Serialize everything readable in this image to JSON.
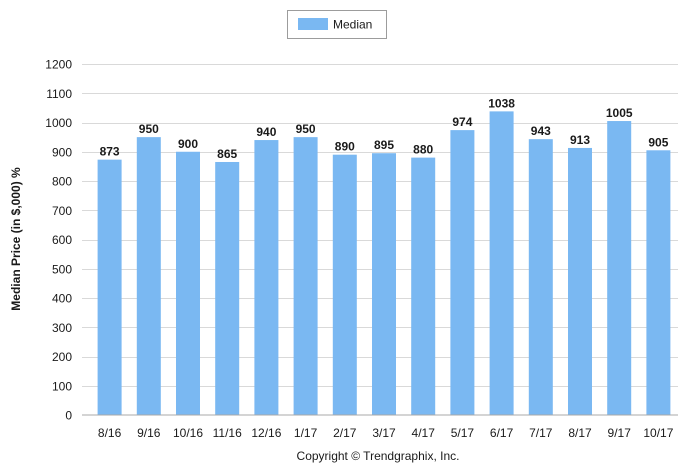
{
  "chart_data": {
    "type": "bar",
    "categories": [
      "8/16",
      "9/16",
      "10/16",
      "11/16",
      "12/16",
      "1/17",
      "2/17",
      "3/17",
      "4/17",
      "5/17",
      "6/17",
      "7/17",
      "8/17",
      "9/17",
      "10/17"
    ],
    "series": [
      {
        "name": "Median",
        "values": [
          873,
          950,
          900,
          865,
          940,
          950,
          890,
          895,
          880,
          974,
          1038,
          943,
          913,
          1005,
          905
        ],
        "color": "#7ab8f2"
      }
    ],
    "data_labels": [
      "873",
      "950",
      "900",
      "865",
      "940",
      "950",
      "890",
      "895",
      "880",
      "974",
      "1038",
      "943",
      "913",
      "1005",
      "905"
    ],
    "ylabel": "Median Price (in $,000) %",
    "xlabel": "",
    "ylim": [
      0,
      1200
    ],
    "yticks": [
      0,
      100,
      200,
      300,
      400,
      500,
      600,
      700,
      800,
      900,
      1000,
      1100,
      1200
    ],
    "ytick_labels": [
      "0",
      "100",
      "200",
      "300",
      "400",
      "500",
      "600",
      "700",
      "800",
      "900",
      "1000",
      "1100",
      "1200"
    ],
    "grid": true,
    "legend_position": "top-center"
  },
  "copyright": "Copyright © Trendgraphix, Inc."
}
